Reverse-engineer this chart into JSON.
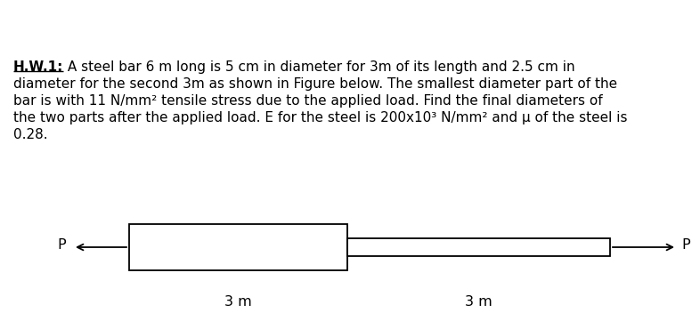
{
  "background_color": "#ffffff",
  "bold_part": "H.W.1:",
  "line1_rest": " A steel bar 6 m long is 5 cm in diameter for 3m of its length and 2.5 cm in",
  "line2": "diameter for the second 3m as shown in Figure below. The smallest diameter part of the",
  "line3": "bar is with 11 N/mm² tensile stress due to the applied load. Find the final diameters of",
  "line4": "the two parts after the applied load. E for the steel is 200x10³ N/mm² and μ of the steel is",
  "line5": "0.28.",
  "label_P_left": "P",
  "label_P_right": "P",
  "label_3m_left": "3 m",
  "label_3m_right": "3 m",
  "bar_edge_color": "#000000",
  "bar_face_color": "#ffffff",
  "text_fontsize": 11.0,
  "label_fontsize": 11.5,
  "fig_width": 7.86,
  "fig_height": 3.7,
  "dpi": 100
}
